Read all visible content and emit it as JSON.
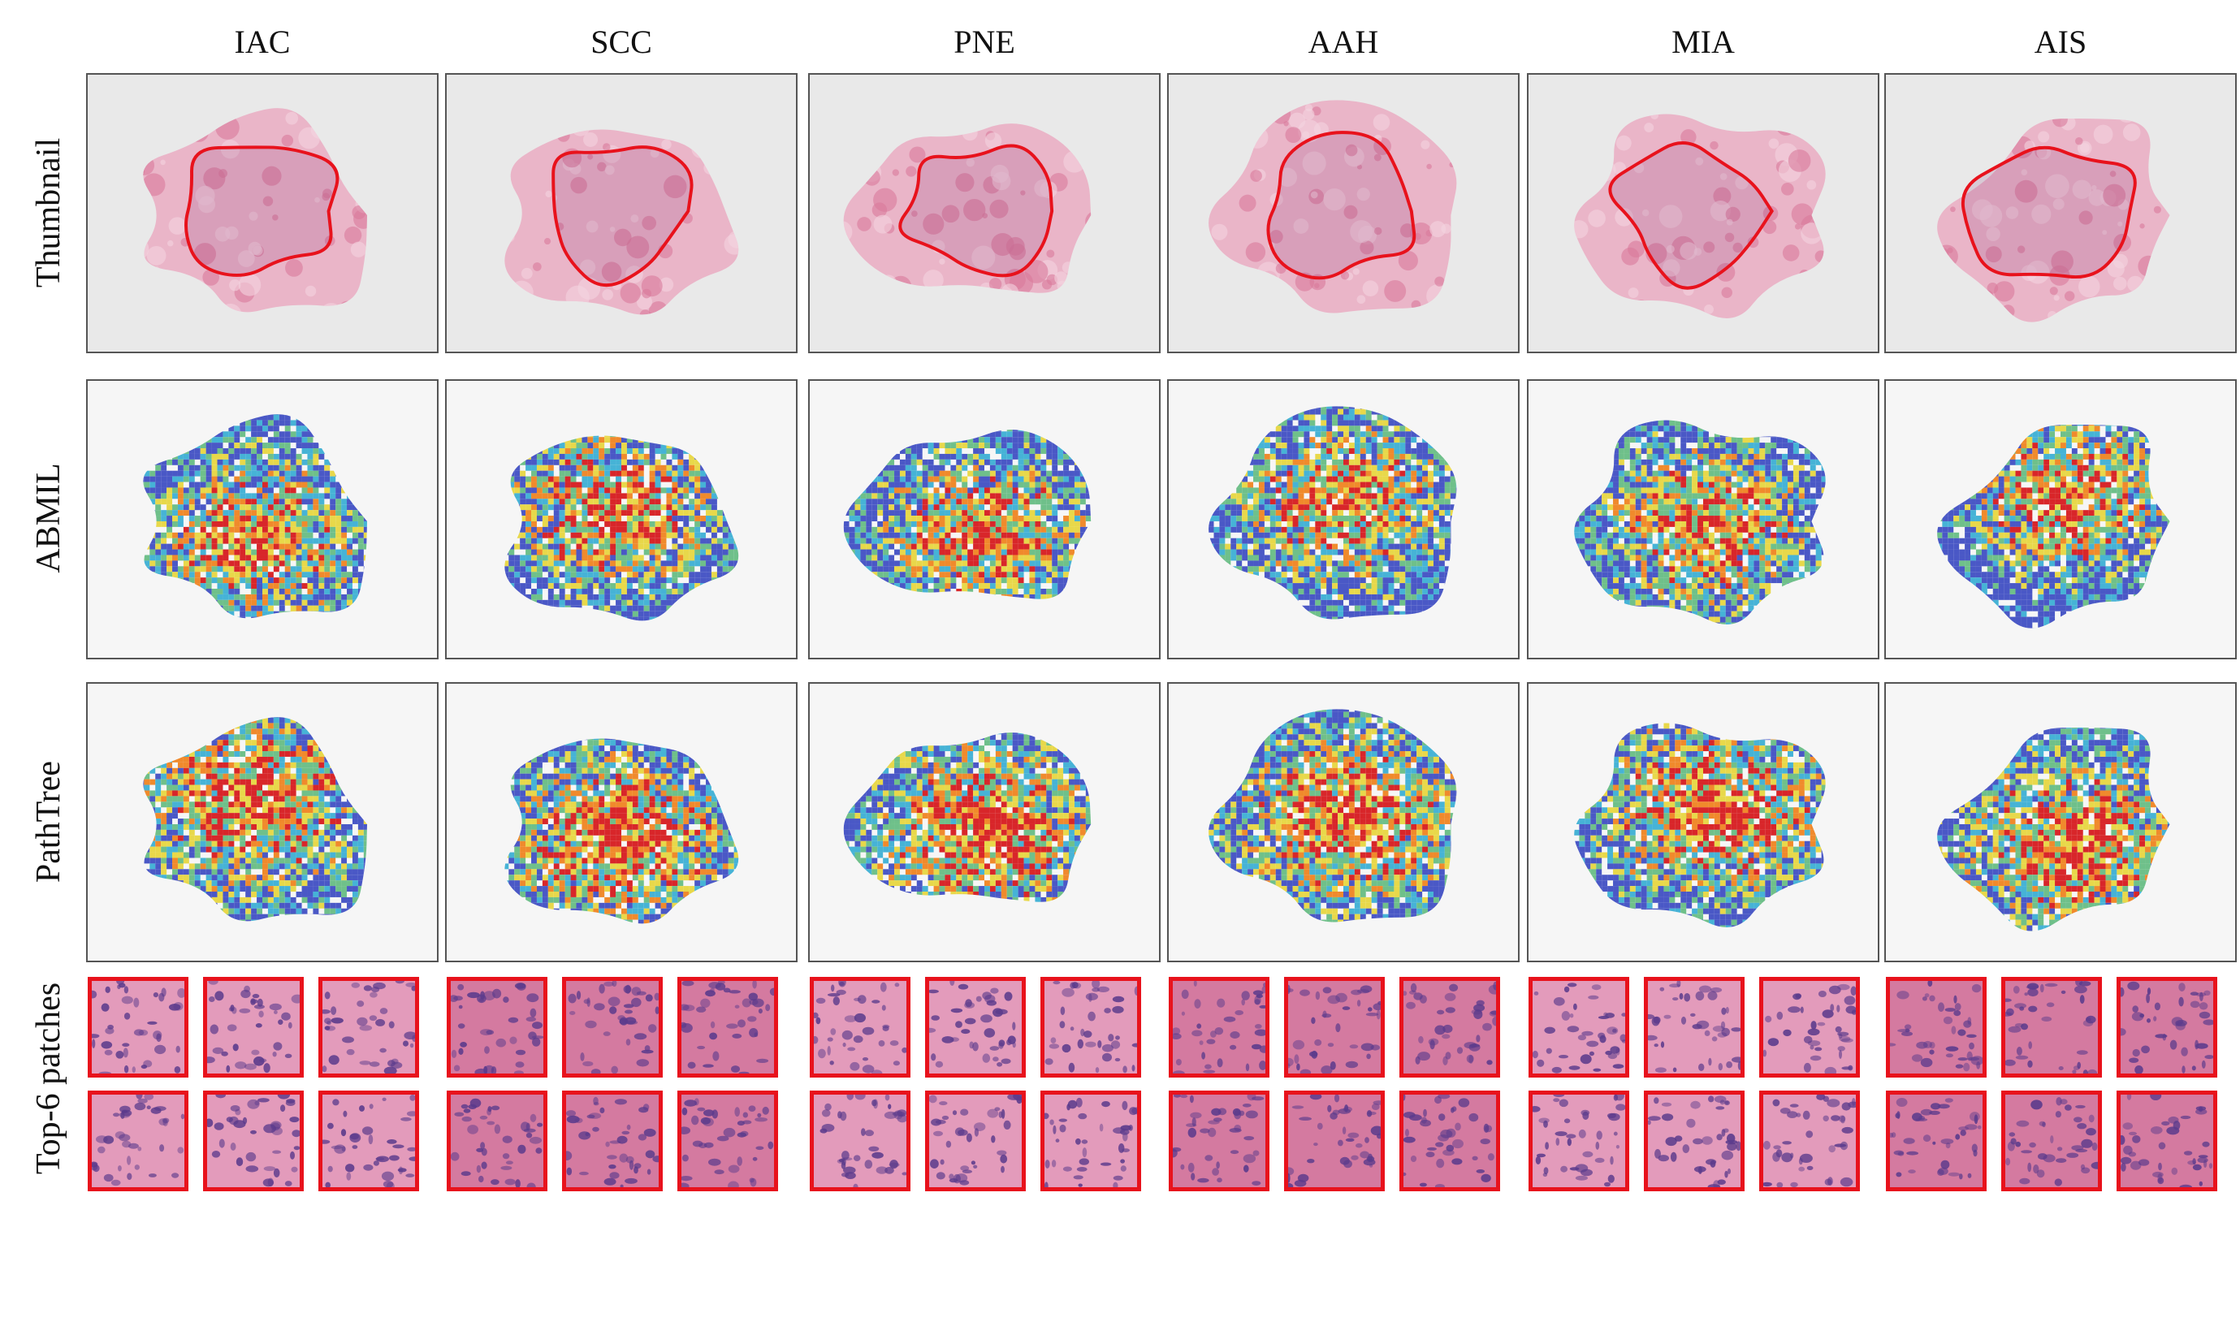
{
  "columns": [
    "IAC",
    "SCC",
    "PNE",
    "AAH",
    "MIA",
    "AIS"
  ],
  "rows": [
    "Thumbnail",
    "ABMIL",
    "PathTree",
    "Top-6 patches"
  ],
  "colors": {
    "tissue_pink": "#d9799b",
    "tissue_light": "#eab5c8",
    "annotation_red": "#e8121c",
    "heat_red": "#d8262a",
    "heat_orange": "#f08a2c",
    "heat_yellow": "#e8d84a",
    "heat_green": "#6fc08a",
    "heat_cyan": "#46b3d6",
    "heat_blue": "#4a58c6",
    "nuclei_purple": "#5b3b8c",
    "patch_border": "#e8121c",
    "panel_bg": "#e9e9e9"
  },
  "patches_per_column": 6
}
